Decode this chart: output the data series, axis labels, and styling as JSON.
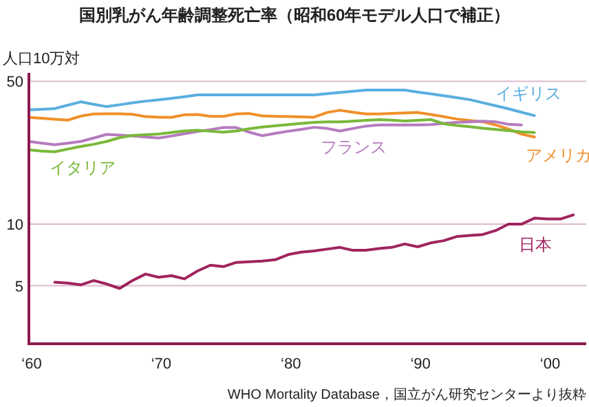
{
  "chart_data": {
    "type": "line",
    "title": "国別乳がん年齢調整死亡率（昭和60年モデル人口で補正）",
    "ylabel": "人口10万対",
    "annotations": [
      "WHO Mortality Database，国立がん研究センターより抜粋"
    ],
    "log": "y",
    "grid": "y",
    "legend": false,
    "marker": "none",
    "line_style": "solid",
    "categories": [
      "‘60",
      null,
      null,
      null,
      null,
      null,
      null,
      null,
      null,
      null,
      "‘70",
      null,
      null,
      null,
      null,
      null,
      null,
      null,
      null,
      null,
      "‘80",
      null,
      null,
      null,
      null,
      null,
      null,
      null,
      null,
      null,
      "‘90",
      null,
      null,
      null,
      null,
      null,
      null,
      null,
      null,
      null,
      "‘00",
      null,
      null
    ],
    "ylim": [
      2.6,
      55
    ],
    "yticks": [
      5,
      10,
      50
    ],
    "series": [
      {
        "name": "イギリス",
        "color": "#5aaee0",
        "values": [
          36.3,
          36.5,
          36.8,
          38.2,
          39.7,
          38.6,
          37.6,
          38.4,
          39.3,
          40,
          40.6,
          41.3,
          42,
          42.9,
          42.9,
          42.9,
          42.9,
          42.9,
          42.9,
          42.9,
          42.9,
          42.9,
          42.9,
          43.5,
          44.1,
          44.7,
          45.3,
          45.3,
          45.3,
          45.3,
          44.3,
          43.4,
          42.5,
          41.6,
          40.7,
          39.3,
          38,
          36.7,
          35.3,
          34,
          null,
          null,
          null
        ]
      },
      {
        "name": "アメリカ",
        "color": "#f0902a",
        "values": [
          33.3,
          33,
          32.6,
          32.3,
          33.8,
          34.6,
          34.7,
          34.7,
          34.5,
          33.6,
          33.4,
          33.3,
          34.3,
          34.4,
          33.7,
          33.7,
          34.6,
          34.8,
          33.9,
          33.7,
          33.6,
          33.5,
          33.4,
          35.2,
          36.1,
          35.3,
          34.6,
          34.6,
          34.8,
          35,
          35.2,
          34.4,
          33.6,
          32.7,
          32.2,
          31.7,
          30.6,
          29.2,
          27.6,
          26.7,
          null,
          null,
          null
        ]
      },
      {
        "name": "フランス",
        "color": "#b57bbf",
        "values": [
          25.4,
          24.9,
          24.5,
          24.9,
          25.4,
          26.4,
          27.5,
          27.3,
          27,
          26.7,
          26.4,
          27,
          27.7,
          28.4,
          29,
          29.7,
          29.7,
          28.2,
          27.1,
          27.8,
          28.5,
          29.1,
          29.8,
          29.4,
          28.6,
          29.4,
          30.2,
          30.6,
          30.6,
          30.6,
          30.6,
          30.7,
          31.1,
          31.5,
          31.7,
          31.9,
          31.7,
          30.8,
          30.6,
          null,
          null,
          null,
          null
        ]
      },
      {
        "name": "イタリア",
        "color": "#7ab83a",
        "values": [
          23.1,
          22.8,
          22.6,
          23.3,
          24,
          24.6,
          25.4,
          26.5,
          27.2,
          27.4,
          27.6,
          28.1,
          28.6,
          28.8,
          28.5,
          28.2,
          28.6,
          29.3,
          29.9,
          30.3,
          30.7,
          31.1,
          31.5,
          31.7,
          31.7,
          31.9,
          32.2,
          32.5,
          32.3,
          32,
          32.2,
          32.5,
          31,
          30.4,
          30,
          29.5,
          29.1,
          28.7,
          28.3,
          28.1,
          null,
          null,
          null
        ]
      },
      {
        "name": "日本",
        "color": "#a0245e",
        "values": [
          null,
          null,
          5.2,
          5.15,
          5.05,
          5.3,
          5.1,
          4.85,
          5.3,
          5.7,
          5.5,
          5.6,
          5.4,
          5.9,
          6.3,
          6.2,
          6.5,
          6.55,
          6.6,
          6.7,
          7.1,
          7.3,
          7.4,
          7.55,
          7.7,
          7.45,
          7.45,
          7.6,
          7.7,
          8,
          7.75,
          8.1,
          8.3,
          8.7,
          8.8,
          8.9,
          9.3,
          10,
          10,
          10.7,
          10.6,
          10.6,
          11.1
        ]
      }
    ]
  }
}
